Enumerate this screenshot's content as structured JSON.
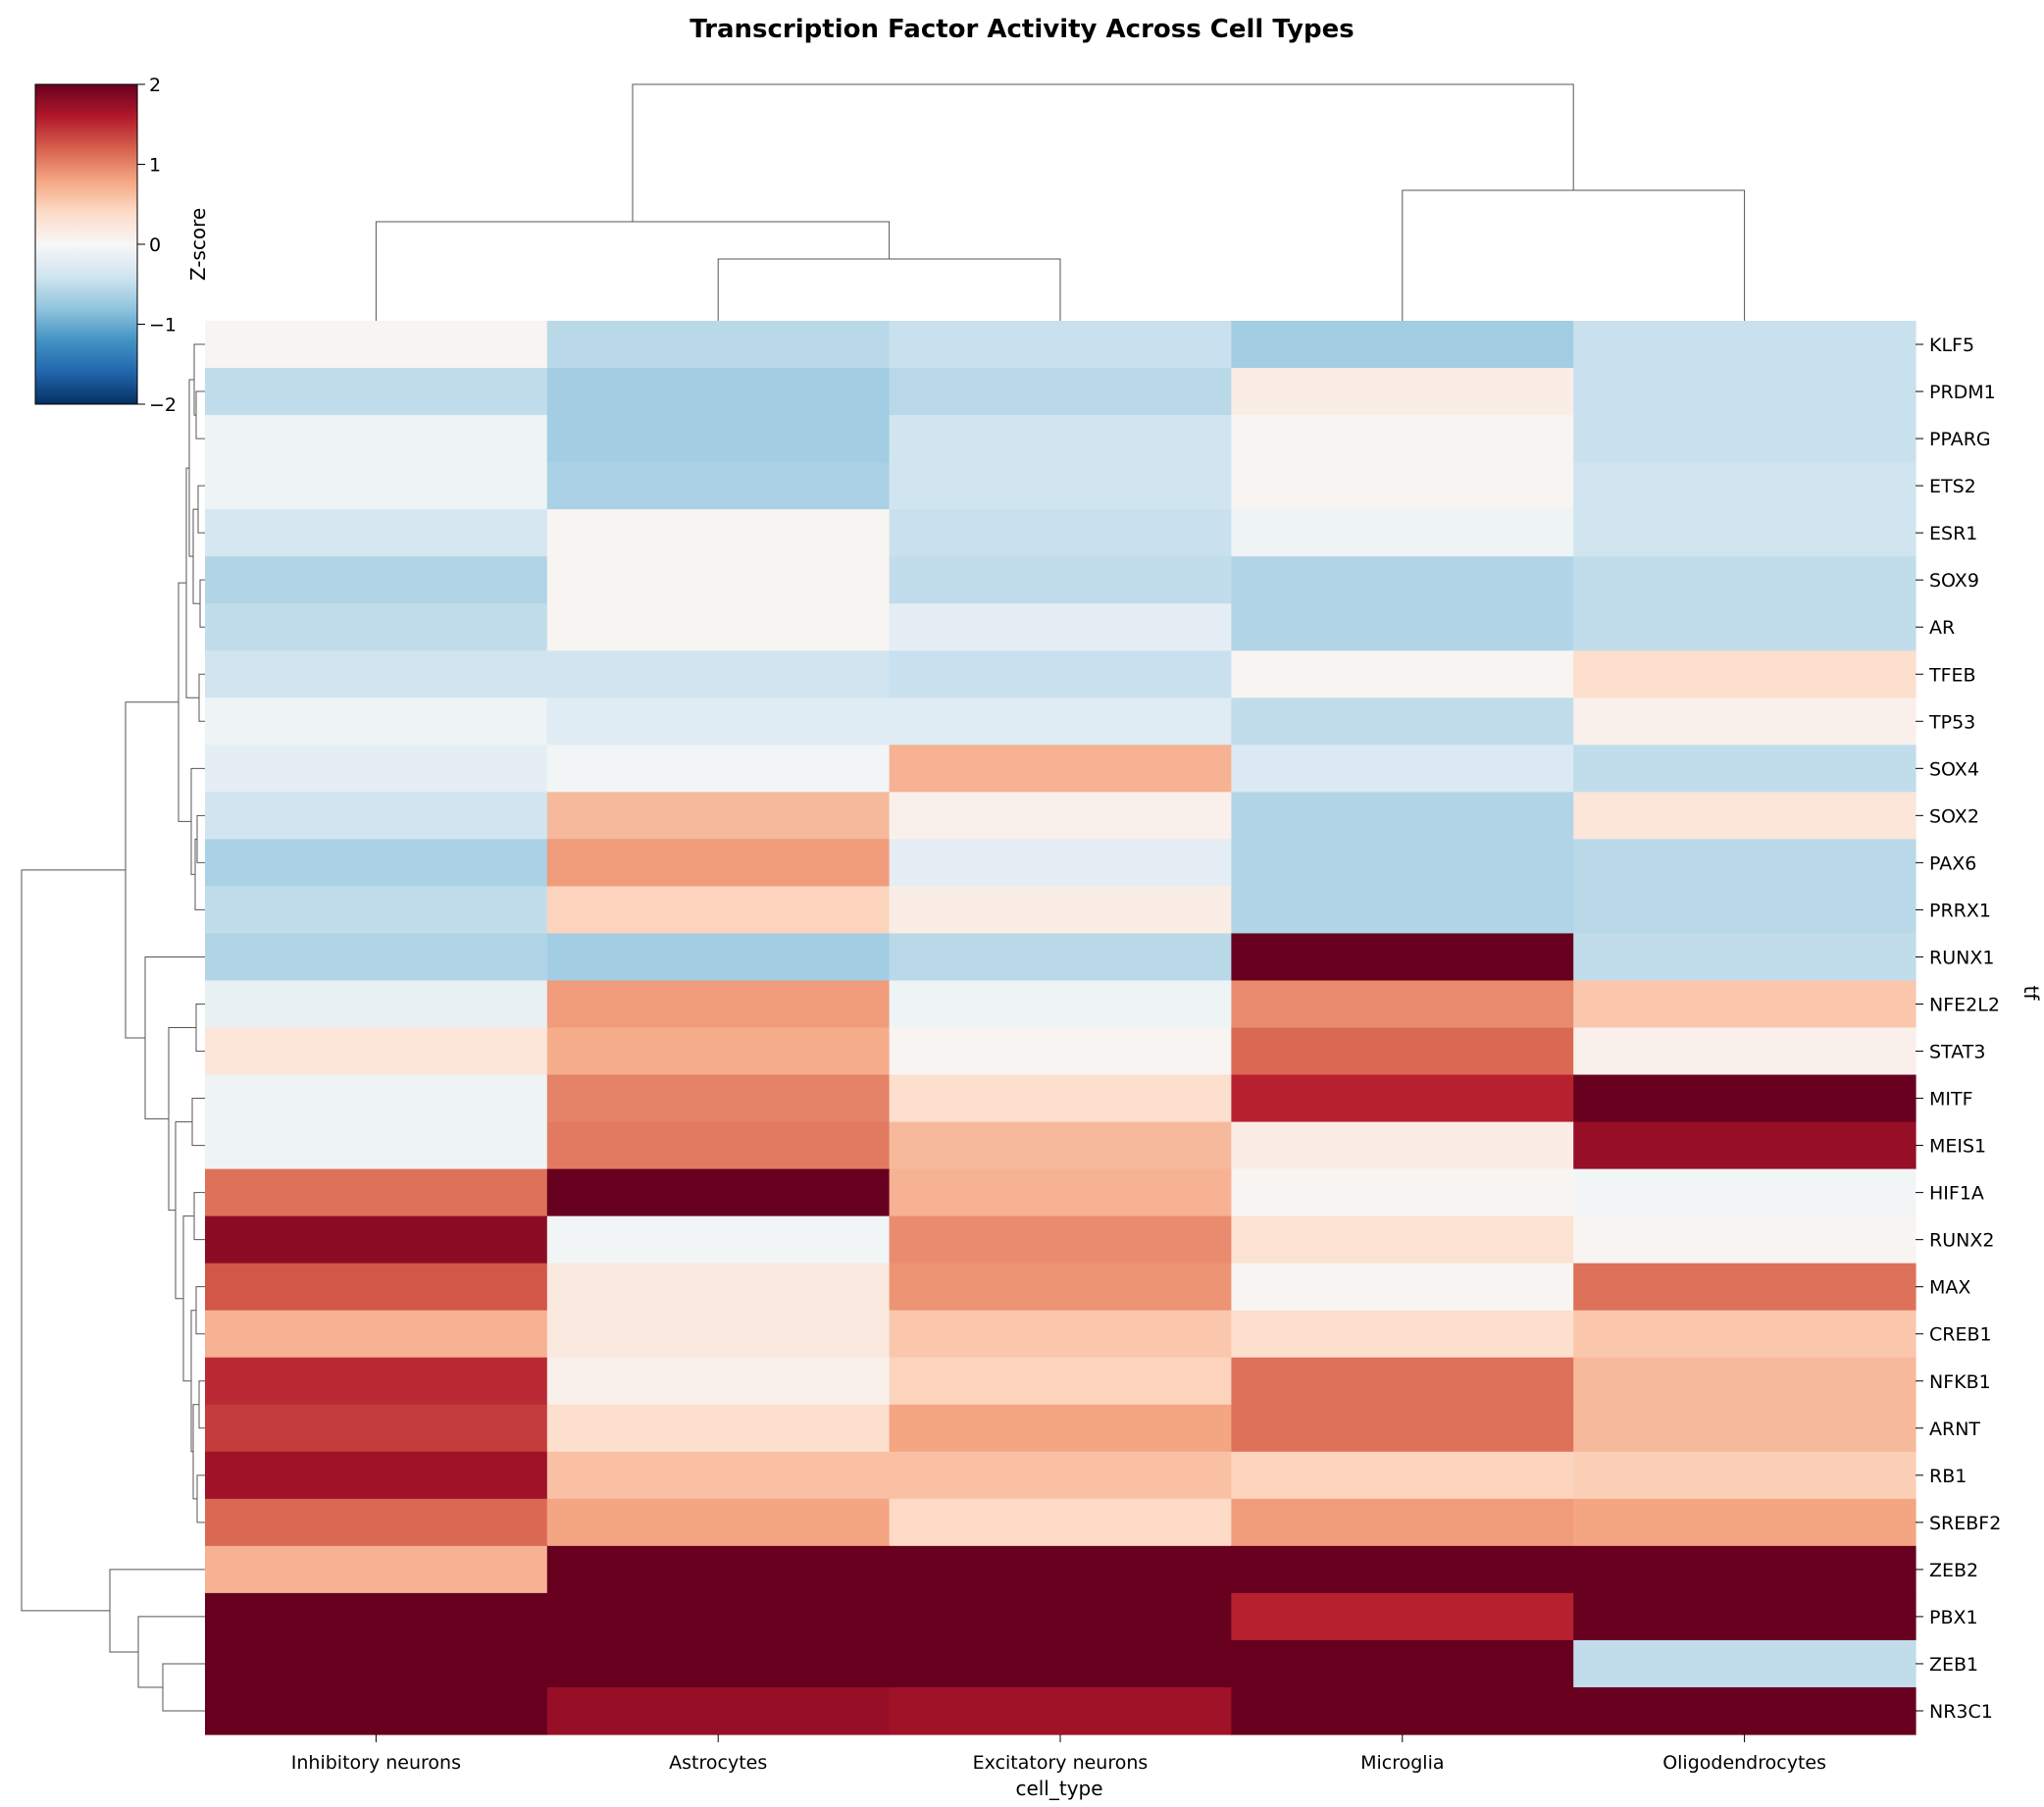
{
  "chart_data": {
    "type": "heatmap",
    "title": "Transcription Factor Activity Across Cell Types",
    "xlabel": "cell_type",
    "ylabel": "tf",
    "colorbar": {
      "label": "Z-score",
      "range": [
        -2,
        2
      ],
      "ticks": [
        2,
        1,
        0,
        -1,
        -2
      ],
      "tick_labels": [
        "2",
        "1",
        "0",
        "−1",
        "−2"
      ],
      "colormap": "RdBu_r"
    },
    "columns": [
      "Inhibitory neurons",
      "Astrocytes",
      "Excitatory neurons",
      "Microglia",
      "Oligodendrocytes"
    ],
    "rows": [
      "KLF5",
      "PRDM1",
      "PPARG",
      "ETS2",
      "ESR1",
      "SOX9",
      "AR",
      "TFEB",
      "TP53",
      "SOX4",
      "SOX2",
      "PAX6",
      "PRRX1",
      "RUNX1",
      "NFE2L2",
      "STAT3",
      "MITF",
      "MEIS1",
      "HIF1A",
      "RUNX2",
      "MAX",
      "CREB1",
      "NFKB1",
      "ARNT",
      "RB1",
      "SREBF2",
      "ZEB2",
      "PBX1",
      "ZEB1",
      "NR3C1"
    ],
    "values": [
      [
        0.05,
        -0.55,
        -0.45,
        -0.7,
        -0.45
      ],
      [
        -0.5,
        -0.7,
        -0.55,
        0.15,
        -0.45
      ],
      [
        -0.1,
        -0.7,
        -0.4,
        0.05,
        -0.45
      ],
      [
        -0.1,
        -0.65,
        -0.4,
        0.05,
        -0.4
      ],
      [
        -0.35,
        0.05,
        -0.45,
        -0.1,
        -0.4
      ],
      [
        -0.6,
        0.05,
        -0.5,
        -0.6,
        -0.5
      ],
      [
        -0.5,
        0.05,
        -0.2,
        -0.6,
        -0.5
      ],
      [
        -0.4,
        -0.4,
        -0.45,
        0.05,
        0.35
      ],
      [
        -0.1,
        -0.25,
        -0.25,
        -0.5,
        0.1
      ],
      [
        -0.2,
        -0.05,
        0.7,
        -0.3,
        -0.5
      ],
      [
        -0.4,
        0.65,
        0.1,
        -0.6,
        0.25
      ],
      [
        -0.65,
        0.85,
        -0.2,
        -0.6,
        -0.55
      ],
      [
        -0.5,
        0.45,
        0.15,
        -0.6,
        -0.55
      ],
      [
        -0.6,
        -0.7,
        -0.55,
        3.0,
        -0.5
      ],
      [
        -0.15,
        0.85,
        -0.1,
        0.95,
        0.55
      ],
      [
        0.25,
        0.75,
        0.05,
        1.15,
        0.1
      ],
      [
        -0.1,
        1.0,
        0.35,
        1.55,
        2.5
      ],
      [
        -0.1,
        1.05,
        0.65,
        0.15,
        1.75
      ],
      [
        1.1,
        3.0,
        0.7,
        0.05,
        -0.05
      ],
      [
        1.8,
        -0.05,
        0.95,
        0.3,
        0.05
      ],
      [
        1.25,
        0.2,
        0.9,
        0.05,
        1.1
      ],
      [
        0.7,
        0.2,
        0.55,
        0.35,
        0.55
      ],
      [
        1.5,
        0.1,
        0.45,
        1.1,
        0.65
      ],
      [
        1.4,
        0.35,
        0.8,
        1.1,
        0.65
      ],
      [
        1.7,
        0.6,
        0.6,
        0.45,
        0.5
      ],
      [
        1.15,
        0.8,
        0.4,
        0.85,
        0.8
      ],
      [
        0.7,
        3.0,
        3.0,
        3.0,
        3.0
      ],
      [
        3.0,
        3.0,
        3.0,
        1.55,
        3.0
      ],
      [
        3.0,
        3.0,
        3.0,
        2.3,
        -0.5
      ],
      [
        3.0,
        1.75,
        1.7,
        3.0,
        3.0
      ]
    ]
  }
}
